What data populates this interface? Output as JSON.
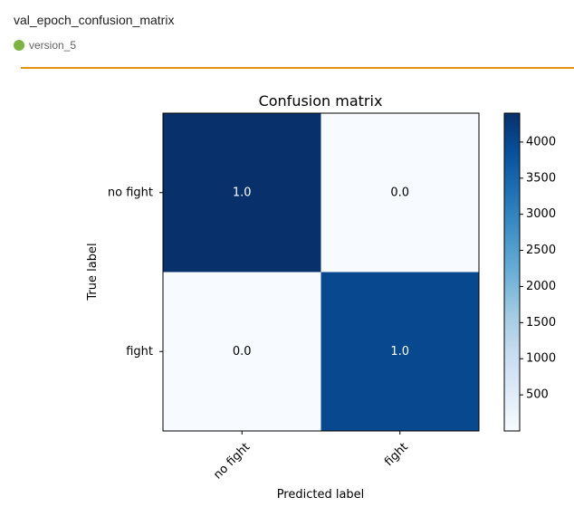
{
  "card": {
    "title": "val_epoch_confusion_matrix",
    "run_label": "version_5",
    "run_color": "#7cb342",
    "divider_color": "#e48f14"
  },
  "chart_data": {
    "type": "heatmap",
    "title": "Confusion matrix",
    "xlabel": "Predicted label",
    "ylabel": "True label",
    "x_categories": [
      "no fight",
      "fight"
    ],
    "y_categories": [
      "no fight",
      "fight"
    ],
    "counts": [
      [
        4400,
        0
      ],
      [
        0,
        4000
      ]
    ],
    "cell_labels": [
      [
        "1.0",
        "0.0"
      ],
      [
        "0.0",
        "1.0"
      ]
    ],
    "cell_text_colors": [
      [
        "#ffffff",
        "#000000"
      ],
      [
        "#000000",
        "#ffffff"
      ]
    ],
    "colormap": "Blues",
    "colorbar": {
      "ticks": [
        500,
        1000,
        1500,
        2000,
        2500,
        3000,
        3500,
        4000
      ],
      "tick_labels": [
        "500",
        "1000",
        "1500",
        "2000",
        "2500",
        "3000",
        "3500",
        "4000"
      ],
      "range": [
        0,
        4400
      ]
    }
  }
}
